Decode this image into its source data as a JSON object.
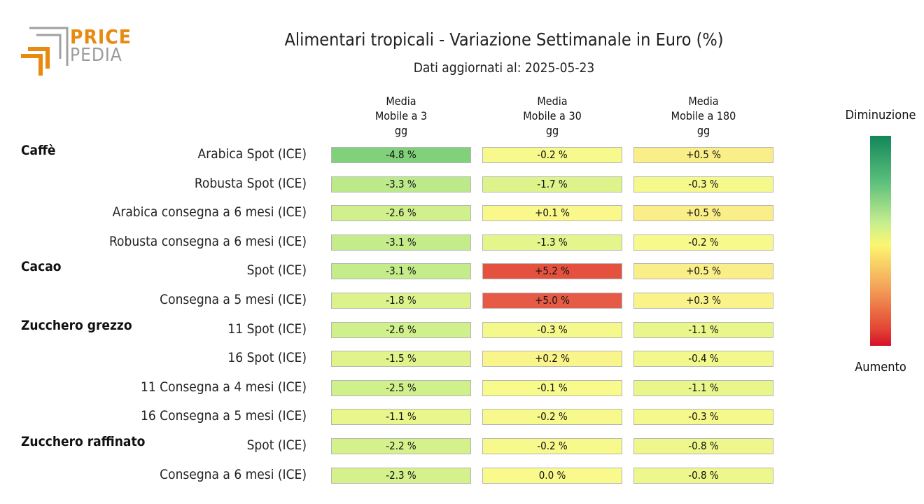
{
  "brand": {
    "line1": "PRICE",
    "line2": "PEDIA"
  },
  "title": "Alimentari tropicali - Variazione Settimanale in Euro (%)",
  "subtitle": "Dati aggiornati al: 2025-05-23",
  "columns": [
    "Media\nMobile a 3\ngg",
    "Media\nMobile a 30\ngg",
    "Media\nMobile a 180\ngg"
  ],
  "legend": {
    "top": "Diminuzione",
    "bottom": "Aumento"
  },
  "colors": {
    "scale_top": "#12875a",
    "scale_mid": "#fbf670",
    "scale_bottom": "#d4102a"
  },
  "chart_data": {
    "type": "heatmap",
    "title": "Alimentari tropicali - Variazione Settimanale in Euro (%)",
    "columns": [
      "Media Mobile a 3 gg",
      "Media Mobile a 30 gg",
      "Media Mobile a 180 gg"
    ],
    "groups": [
      "Caffè",
      "Cacao",
      "Zucchero grezzo",
      "Zucchero raffinato"
    ],
    "rows": [
      {
        "group": "Caffè",
        "label": "Arabica Spot (ICE)",
        "values": [
          -4.8,
          -0.2,
          0.5
        ],
        "labels": [
          "-4.8 %",
          "-0.2 %",
          "+0.5 %"
        ]
      },
      {
        "group": "",
        "label": "Robusta Spot (ICE)",
        "values": [
          -3.3,
          -1.7,
          -0.3
        ],
        "labels": [
          "-3.3 %",
          "-1.7 %",
          "-0.3 %"
        ]
      },
      {
        "group": "",
        "label": "Arabica consegna a 6 mesi (ICE)",
        "values": [
          -2.6,
          0.1,
          0.5
        ],
        "labels": [
          "-2.6 %",
          "+0.1 %",
          "+0.5 %"
        ]
      },
      {
        "group": "",
        "label": "Robusta consegna a 6 mesi (ICE)",
        "values": [
          -3.1,
          -1.3,
          -0.2
        ],
        "labels": [
          "-3.1 %",
          "-1.3 %",
          "-0.2 %"
        ]
      },
      {
        "group": "Cacao",
        "label": "Spot (ICE)",
        "values": [
          -3.1,
          5.2,
          0.5
        ],
        "labels": [
          "-3.1 %",
          "+5.2 %",
          "+0.5 %"
        ]
      },
      {
        "group": "",
        "label": "Consegna a 5 mesi (ICE)",
        "values": [
          -1.8,
          5.0,
          0.3
        ],
        "labels": [
          "-1.8 %",
          "+5.0 %",
          "+0.3 %"
        ]
      },
      {
        "group": "Zucchero grezzo",
        "label": "11 Spot (ICE)",
        "values": [
          -2.6,
          -0.3,
          -1.1
        ],
        "labels": [
          "-2.6 %",
          "-0.3 %",
          "-1.1 %"
        ]
      },
      {
        "group": "",
        "label": "16 Spot (ICE)",
        "values": [
          -1.5,
          0.2,
          -0.4
        ],
        "labels": [
          "-1.5 %",
          "+0.2 %",
          "-0.4 %"
        ]
      },
      {
        "group": "",
        "label": "11 Consegna a 4 mesi (ICE)",
        "values": [
          -2.5,
          -0.1,
          -1.1
        ],
        "labels": [
          "-2.5 %",
          "-0.1 %",
          "-1.1 %"
        ]
      },
      {
        "group": "",
        "label": "16 Consegna a 5 mesi (ICE)",
        "values": [
          -1.1,
          -0.2,
          -0.3
        ],
        "labels": [
          "-1.1 %",
          "-0.2 %",
          "-0.3 %"
        ]
      },
      {
        "group": "Zucchero raffinato",
        "label": "Spot (ICE)",
        "values": [
          -2.2,
          -0.2,
          -0.8
        ],
        "labels": [
          "-2.2 %",
          "-0.2 %",
          "-0.8 %"
        ]
      },
      {
        "group": "",
        "label": "Consegna a 6 mesi (ICE)",
        "values": [
          -2.3,
          0.0,
          -0.8
        ],
        "labels": [
          "-2.3 %",
          "0.0 %",
          "-0.8 %"
        ]
      }
    ],
    "color_scale": {
      "low_label": "Diminuzione",
      "high_label": "Aumento"
    },
    "grid": false
  }
}
